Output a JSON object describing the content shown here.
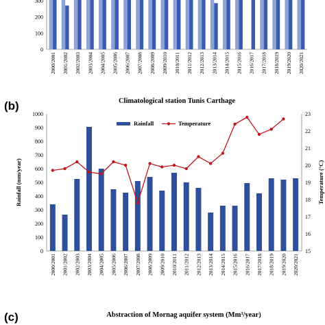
{
  "panel_a": {
    "top_tick_label": "300",
    "zero_tick_label": "0",
    "tick_labels": [
      "300",
      "200",
      "100",
      "0"
    ],
    "light_color": "#8fa3d6",
    "dark_color": "#3a5cb0"
  },
  "panel_b": {
    "label": "(b)",
    "title": "Climatological station Tunis Carthage",
    "left_axis_label": "Rainfall (mm/year)",
    "right_axis_label": "Temperature (°C)",
    "legend_rainfall": "Rainfall",
    "legend_temperature": "Temperature",
    "y_left_ticks": [
      "0",
      "100",
      "200",
      "300",
      "400",
      "500",
      "600",
      "700",
      "800",
      "900",
      "1000"
    ],
    "y_right_ticks": [
      "15",
      "16",
      "17",
      "18",
      "19",
      "20",
      "21",
      "22",
      "23"
    ]
  },
  "panel_c": {
    "label": "(c)",
    "title": "Abstraction of Mornag aquifer system (Mm³/year)"
  },
  "chart_data": [
    {
      "type": "bar",
      "panel": "a",
      "categories": [
        "2000/2001",
        "2001/2002",
        "2002/2003",
        "2003/2004",
        "2004/2005",
        "2005/2006",
        "2006/2007",
        "2007/2008",
        "2008/2009",
        "2009/2010",
        "2010/2011",
        "2011/2012",
        "2012/2013",
        "2013/2014",
        "2014/2015",
        "2015/2016",
        "2016/2017",
        "2017/2018",
        "2018/2019",
        "2019/2020",
        "2020/2021"
      ],
      "series": [
        {
          "values": [
            320,
            320,
            320,
            320,
            320,
            320,
            320,
            320,
            320,
            320,
            320,
            320,
            320,
            320,
            320,
            320,
            0,
            320,
            320,
            320,
            320
          ],
          "color": "#8fa3d6"
        },
        {
          "values": [
            320,
            270,
            320,
            320,
            320,
            320,
            320,
            320,
            320,
            320,
            320,
            320,
            320,
            285,
            320,
            305,
            320,
            320,
            320,
            320,
            320
          ],
          "color": "#3a5cb0"
        }
      ],
      "ylim": [
        0,
        320
      ]
    },
    {
      "type": "bar",
      "panel": "b",
      "title": "Climatological station Tunis Carthage",
      "categories": [
        "2000/2001",
        "2001/2002",
        "2002/2003",
        "2003/2004",
        "2004/2005",
        "2005/2006",
        "2006/2007",
        "2007/2008",
        "2008/2009",
        "2009/2010",
        "2010/2011",
        "2011/2012",
        "2012/2013",
        "2013/2014",
        "2014/2015",
        "2015/2016",
        "2016/2017",
        "2017/2018",
        "2018/2019",
        "2019/2020",
        "2020/2021"
      ],
      "series": [
        {
          "name": "Rainfall",
          "type": "bar",
          "axis": "left",
          "color": "#2e4f9a",
          "values": [
            340,
            265,
            525,
            905,
            600,
            450,
            425,
            510,
            540,
            440,
            570,
            500,
            460,
            280,
            330,
            330,
            495,
            420,
            530,
            520,
            530
          ]
        },
        {
          "name": "Temperature",
          "type": "line",
          "axis": "right",
          "color": "#c0161c",
          "values": [
            19.7,
            19.8,
            20.2,
            19.6,
            19.5,
            20.2,
            20.0,
            17.8,
            20.1,
            19.9,
            20.0,
            19.8,
            20.5,
            20.1,
            20.7,
            22.4,
            22.8,
            21.8,
            22.1,
            22.7,
            null
          ]
        }
      ],
      "ylabel": "Rainfall (mm/year)",
      "y2label": "Temperature (°C)",
      "ylim": [
        0,
        1000
      ],
      "y2lim": [
        15,
        23
      ],
      "legend": "top-center"
    }
  ]
}
